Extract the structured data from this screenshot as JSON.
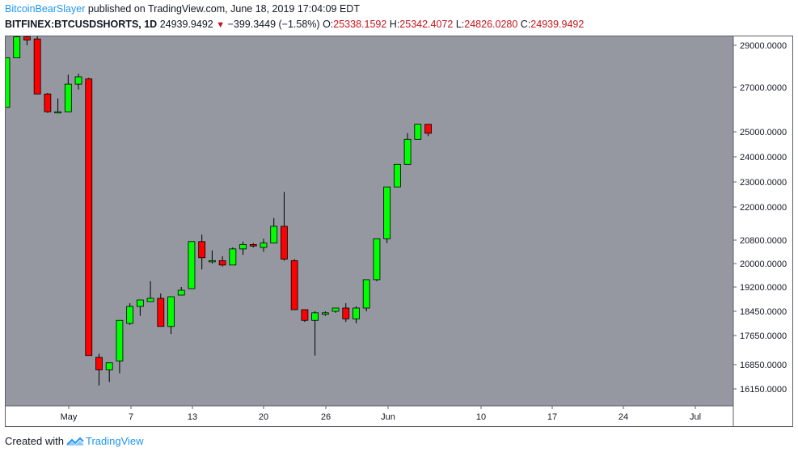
{
  "header": {
    "author": "BitcoinBearSlayer",
    "published_text": "published on TradingView.com, June 18, 2019 17:04:09 EDT",
    "symbol": "BITFINEX:BTCUSDSHORTS, 1D",
    "last_price": "24939.9492",
    "change": "−399.3449 (−1.58%)",
    "open_label": "O:",
    "open": "25338.1592",
    "high_label": "H:",
    "high": "25342.4072",
    "low_label": "L:",
    "low": "24826.0280",
    "close_label": "C:",
    "close": "24939.9492"
  },
  "footer": {
    "created_with": "Created with",
    "brand": "TradingView"
  },
  "colors": {
    "plot_background": "#9598a1",
    "up": "#00ff00",
    "down": "#ff0000",
    "wick": "#000000",
    "axis_text": "#131722",
    "header_red": "#c4161c",
    "brand_blue": "#2196f3"
  },
  "chart_data": {
    "type": "candlestick",
    "y_ticks": [
      "29000.0000",
      "27000.0000",
      "25000.0000",
      "24000.0000",
      "23000.0000",
      "22000.0000",
      "20800.0000",
      "20000.0000",
      "19200.0000",
      "18450.0000",
      "17650.0000",
      "16850.0000",
      "16150.0000"
    ],
    "x_ticks": [
      "May",
      "7",
      "13",
      "20",
      "26",
      "Jun",
      "10",
      "17",
      "24",
      "Jul"
    ],
    "candles": [
      {
        "o": 26100,
        "h": 28400,
        "l": 26100,
        "c": 28400
      },
      {
        "o": 28400,
        "h": 29500,
        "l": 28400,
        "c": 29400
      },
      {
        "o": 29400,
        "h": 29700,
        "l": 29000,
        "c": 29250
      },
      {
        "o": 29300,
        "h": 29500,
        "l": 26700,
        "c": 26700
      },
      {
        "o": 26700,
        "h": 26750,
        "l": 25850,
        "c": 25900
      },
      {
        "o": 25900,
        "h": 26500,
        "l": 25850,
        "c": 25900
      },
      {
        "o": 25900,
        "h": 27600,
        "l": 25900,
        "c": 27150
      },
      {
        "o": 27150,
        "h": 27650,
        "l": 26900,
        "c": 27500
      },
      {
        "o": 27400,
        "h": 27450,
        "l": 17100,
        "c": 17100
      },
      {
        "o": 17050,
        "h": 17150,
        "l": 16250,
        "c": 16700
      },
      {
        "o": 16700,
        "h": 16900,
        "l": 16350,
        "c": 16900
      },
      {
        "o": 16950,
        "h": 18150,
        "l": 16600,
        "c": 18150
      },
      {
        "o": 18050,
        "h": 18700,
        "l": 18000,
        "c": 18600
      },
      {
        "o": 18600,
        "h": 18750,
        "l": 18300,
        "c": 18800
      },
      {
        "o": 18750,
        "h": 19400,
        "l": 18750,
        "c": 18850
      },
      {
        "o": 18850,
        "h": 19000,
        "l": 17950,
        "c": 17950
      },
      {
        "o": 17950,
        "h": 18800,
        "l": 17700,
        "c": 18900
      },
      {
        "o": 18950,
        "h": 19200,
        "l": 18950,
        "c": 19100
      },
      {
        "o": 19150,
        "h": 20750,
        "l": 19150,
        "c": 20750
      },
      {
        "o": 20750,
        "h": 21000,
        "l": 19800,
        "c": 20200
      },
      {
        "o": 20100,
        "h": 20450,
        "l": 20000,
        "c": 20100
      },
      {
        "o": 20100,
        "h": 20250,
        "l": 19900,
        "c": 19950
      },
      {
        "o": 19950,
        "h": 20550,
        "l": 19950,
        "c": 20500
      },
      {
        "o": 20500,
        "h": 20750,
        "l": 20300,
        "c": 20650
      },
      {
        "o": 20650,
        "h": 20700,
        "l": 20550,
        "c": 20600
      },
      {
        "o": 20550,
        "h": 20850,
        "l": 20400,
        "c": 20700
      },
      {
        "o": 20700,
        "h": 21600,
        "l": 20700,
        "c": 21300
      },
      {
        "o": 21300,
        "h": 22600,
        "l": 20100,
        "c": 20150
      },
      {
        "o": 20100,
        "h": 20150,
        "l": 18500,
        "c": 18500
      },
      {
        "o": 18500,
        "h": 18500,
        "l": 18100,
        "c": 18150
      },
      {
        "o": 18150,
        "h": 18450,
        "l": 17100,
        "c": 18400
      },
      {
        "o": 18350,
        "h": 18450,
        "l": 18300,
        "c": 18400
      },
      {
        "o": 18450,
        "h": 18550,
        "l": 18400,
        "c": 18550
      },
      {
        "o": 18550,
        "h": 18700,
        "l": 18100,
        "c": 18200
      },
      {
        "o": 18200,
        "h": 18600,
        "l": 18050,
        "c": 18550
      },
      {
        "o": 18550,
        "h": 19450,
        "l": 18450,
        "c": 19450
      },
      {
        "o": 19450,
        "h": 20850,
        "l": 19400,
        "c": 20850
      },
      {
        "o": 20850,
        "h": 22800,
        "l": 20700,
        "c": 22800
      },
      {
        "o": 22800,
        "h": 23700,
        "l": 22800,
        "c": 23700
      },
      {
        "o": 23700,
        "h": 24950,
        "l": 23700,
        "c": 24700
      },
      {
        "o": 24700,
        "h": 25350,
        "l": 24700,
        "c": 25340
      },
      {
        "o": 25338.1592,
        "h": 25342.4072,
        "l": 24826.028,
        "c": 24939.9492
      }
    ]
  }
}
